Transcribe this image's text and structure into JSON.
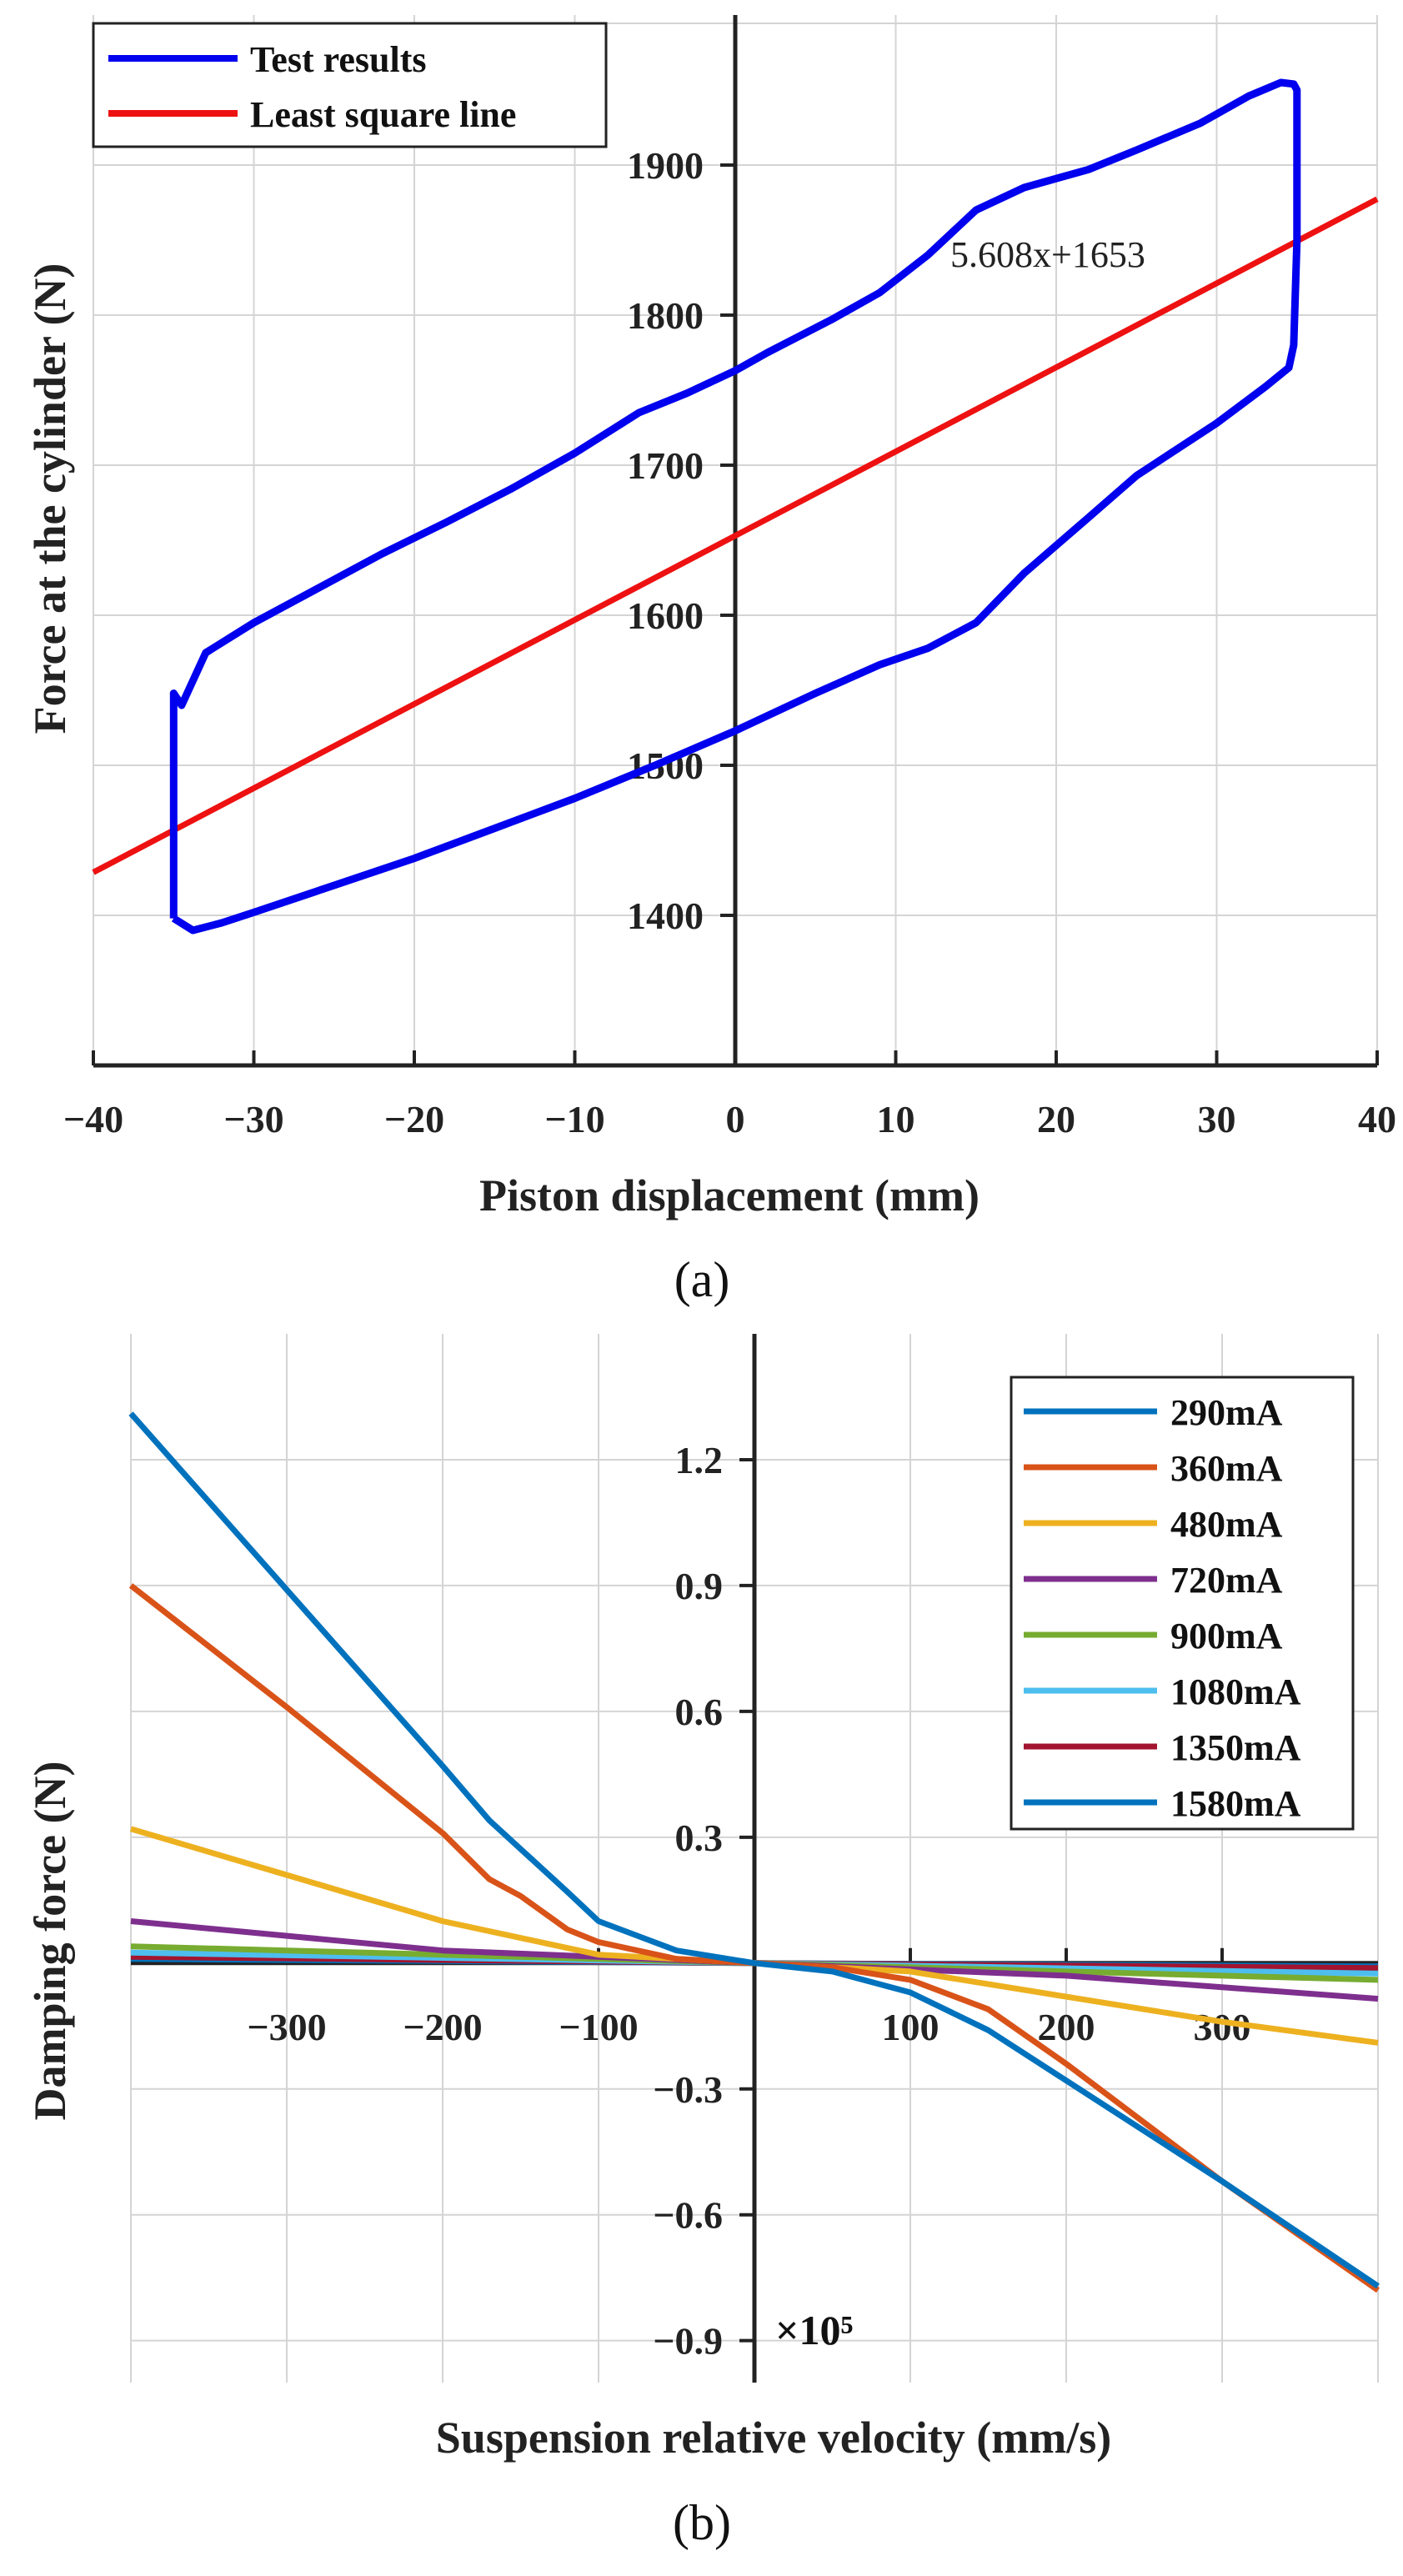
{
  "chart_data": [
    {
      "type": "line",
      "panel_label": "(a)",
      "title": "",
      "xlabel": "Piston displacement (mm)",
      "ylabel": "Force at the cylinder (N)",
      "xlim": [
        -40,
        40
      ],
      "ylim": [
        1300,
        2000
      ],
      "xticks": [
        -40,
        -30,
        -20,
        -10,
        0,
        10,
        20,
        30,
        40
      ],
      "xtick_labels": [
        "−40",
        "−30",
        "−20",
        "−10",
        "0",
        "10",
        "20",
        "30",
        "40"
      ],
      "yticks": [
        1400,
        1500,
        1600,
        1700,
        1800,
        1900
      ],
      "ytick_labels": [
        "1400",
        "1500",
        "1600",
        "1700",
        "1800",
        "1900"
      ],
      "grid": true,
      "legend_position": "top-left",
      "annotation": "5.608x+1653",
      "series": [
        {
          "name": "Test results",
          "color": "#0000ee",
          "x": [
            -35,
            -33.8,
            -32,
            -30,
            -25,
            -20,
            -15,
            -10,
            -5,
            0,
            5,
            9,
            12,
            15,
            18,
            22,
            25,
            30,
            33,
            34.5,
            34.8,
            35,
            35,
            34.8,
            34,
            32,
            29,
            25,
            22,
            18,
            15,
            12,
            9,
            6,
            2,
            0,
            -3,
            -6,
            -10,
            -14,
            -18,
            -22,
            -26,
            -30,
            -33,
            -34.5,
            -35,
            -35
          ],
          "y": [
            1398,
            1390,
            1395,
            1402,
            1420,
            1438,
            1458,
            1478,
            1500,
            1523,
            1548,
            1567,
            1578,
            1595,
            1628,
            1665,
            1693,
            1728,
            1752,
            1765,
            1780,
            1850,
            1950,
            1954,
            1955,
            1946,
            1928,
            1910,
            1897,
            1885,
            1870,
            1840,
            1815,
            1797,
            1775,
            1763,
            1748,
            1735,
            1708,
            1684,
            1662,
            1641,
            1618,
            1595,
            1575,
            1540,
            1548,
            1398
          ]
        },
        {
          "name": "Least square line",
          "color": "#ee1111",
          "x": [
            -40,
            40
          ],
          "y": [
            1428.68,
            1877.32
          ]
        }
      ]
    },
    {
      "type": "line",
      "panel_label": "(b)",
      "title": "",
      "xlabel": "Suspension relative velocity (mm/s)",
      "ylabel": "Damping force (N)",
      "multiplier": "×10⁵",
      "xlim": [
        -400,
        400
      ],
      "ylim": [
        -1.0,
        1.5
      ],
      "xticks": [
        -300,
        -200,
        -100,
        100,
        200,
        300
      ],
      "xtick_labels": [
        "−300",
        "−200",
        "−100",
        "100",
        "200",
        "300"
      ],
      "yticks": [
        -0.9,
        -0.6,
        -0.3,
        0.3,
        0.6,
        0.9,
        1.2
      ],
      "ytick_labels": [
        "−0.9",
        "−0.6",
        "−0.3",
        "0.3",
        "0.6",
        "0.9",
        "1.2"
      ],
      "grid": true,
      "legend_position": "top-right",
      "series": [
        {
          "name": "290mA",
          "color": "#0072bd",
          "x": [
            -400,
            -300,
            -200,
            -170,
            -120,
            -100,
            -50,
            0,
            50,
            100,
            150,
            200,
            300,
            400
          ],
          "y": [
            1.31,
            0.89,
            0.47,
            0.34,
            0.17,
            0.1,
            0.03,
            0.0,
            -0.02,
            -0.07,
            -0.16,
            -0.28,
            -0.52,
            -0.77
          ]
        },
        {
          "name": "360mA",
          "color": "#d95319",
          "x": [
            -400,
            -300,
            -200,
            -170,
            -150,
            -120,
            -100,
            -50,
            0,
            50,
            100,
            150,
            200,
            300,
            400
          ],
          "y": [
            0.9,
            0.61,
            0.31,
            0.2,
            0.16,
            0.08,
            0.05,
            0.01,
            0.0,
            -0.01,
            -0.04,
            -0.11,
            -0.24,
            -0.52,
            -0.78
          ]
        },
        {
          "name": "480mA",
          "color": "#edb120",
          "x": [
            -400,
            -300,
            -200,
            -100,
            0,
            100,
            200,
            300,
            400
          ],
          "y": [
            0.32,
            0.21,
            0.1,
            0.02,
            0.0,
            -0.02,
            -0.08,
            -0.14,
            -0.19
          ]
        },
        {
          "name": "720mA",
          "color": "#7e2f8e",
          "x": [
            -400,
            -200,
            0,
            200,
            400
          ],
          "y": [
            0.1,
            0.03,
            0.0,
            -0.03,
            -0.085
          ]
        },
        {
          "name": "900mA",
          "color": "#77ac30",
          "x": [
            -400,
            0,
            400
          ],
          "y": [
            0.04,
            0.0,
            -0.04
          ]
        },
        {
          "name": "1080mA",
          "color": "#4dbeee",
          "x": [
            -400,
            0,
            400
          ],
          "y": [
            0.025,
            0.0,
            -0.025
          ]
        },
        {
          "name": "1350mA",
          "color": "#a2142f",
          "x": [
            -400,
            0,
            400
          ],
          "y": [
            0.015,
            0.0,
            -0.012
          ]
        },
        {
          "name": "1580mA",
          "color": "#0072bd",
          "x": [
            -400,
            0,
            400
          ],
          "y": [
            0.01,
            0.0,
            -0.008
          ]
        }
      ]
    }
  ]
}
